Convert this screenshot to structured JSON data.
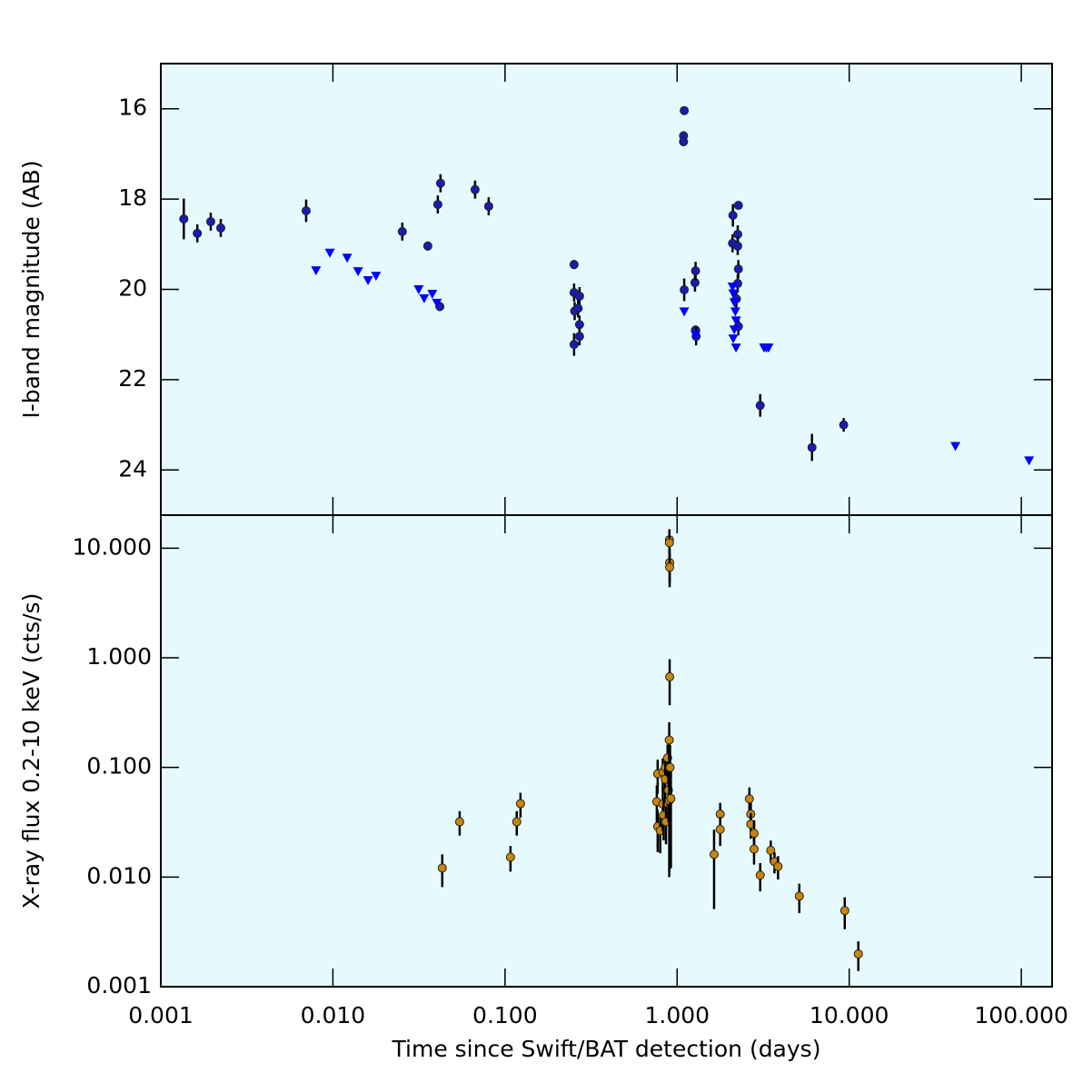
{
  "chart_data": [
    {
      "type": "scatter",
      "ylabel": "I-band magnitude (AB)",
      "xscale": "log",
      "xlim": [
        0.001,
        151
      ],
      "ylim": [
        25,
        15
      ],
      "yticks": [
        16,
        18,
        20,
        22,
        24
      ],
      "series": [
        {
          "color": "#1a1ab4",
          "marker": "circle",
          "x": [
            0.00136,
            0.00163,
            0.00195,
            0.00223,
            0.00699,
            0.0253,
            0.0356,
            0.0407,
            0.0422,
            0.0418,
            0.067,
            0.0804,
            0.252,
            0.252,
            0.254,
            0.252,
            0.271,
            0.271,
            0.266,
            0.271,
            1.1,
            1.09,
            1.09,
            1.1,
            1.27,
            1.28,
            1.28,
            1.29,
            2.11,
            2.1,
            2.27,
            2.25,
            2.25,
            2.27,
            2.25,
            2.21,
            2.27,
            3.04,
            6.08,
            9.29
          ],
          "values": [
            18.44,
            18.76,
            18.5,
            18.64,
            18.26,
            18.72,
            19.04,
            18.12,
            17.65,
            20.38,
            17.79,
            18.16,
            19.45,
            20.07,
            20.48,
            21.22,
            20.15,
            20.78,
            20.42,
            21.04,
            16.04,
            16.6,
            16.73,
            20.01,
            19.85,
            19.59,
            20.9,
            21.04,
            18.36,
            18.98,
            18.14,
            18.78,
            19.04,
            19.55,
            19.87,
            20.21,
            20.82,
            22.57,
            23.5,
            23.0
          ],
          "errors": [
            0.45,
            0.2,
            0.2,
            0.2,
            0.25,
            0.2,
            0.1,
            0.2,
            0.2,
            0.1,
            0.2,
            0.2,
            0.1,
            0.2,
            0.2,
            0.25,
            0.2,
            0.2,
            0.2,
            0.2,
            0.05,
            0.1,
            0.1,
            0.25,
            0.2,
            0.2,
            0.1,
            0.2,
            0.25,
            0.2,
            0.05,
            0.2,
            0.2,
            0.2,
            0.2,
            0.2,
            0.2,
            0.25,
            0.3,
            0.15
          ]
        },
        {
          "color": "#0000ff",
          "marker": "triangle-down",
          "x": [
            0.00798,
            0.0096,
            0.0121,
            0.014,
            0.016,
            0.0178,
            0.0315,
            0.0339,
            0.0378,
            0.0402,
            1.1,
            1.28,
            2.1,
            2.12,
            2.15,
            2.18,
            2.2,
            2.15,
            2.12,
            2.2,
            3.2,
            3.3,
            3.4,
            41.4,
            111
          ],
          "values": [
            19.59,
            19.2,
            19.31,
            19.61,
            19.81,
            19.71,
            20.01,
            20.21,
            20.11,
            20.31,
            20.5,
            21.02,
            19.95,
            20.1,
            20.3,
            20.5,
            20.7,
            20.9,
            21.1,
            21.3,
            21.3,
            21.3,
            21.3,
            23.48,
            23.8
          ]
        }
      ]
    },
    {
      "type": "scatter",
      "xlabel": "Time since Swift/BAT detection (days)",
      "ylabel": "X-ray flux 0.2-10 keV (cts/s)",
      "xscale": "log",
      "yscale": "log",
      "xlim": [
        0.001,
        151
      ],
      "ylim": [
        0.001,
        20
      ],
      "xticks": [
        0.001,
        {
          "value": 0.01,
          "label": "0.010"
        },
        {
          "value": 0.1,
          "label": "0.100"
        },
        {
          "value": 1,
          "label": "1.000"
        },
        {
          "value": 10,
          "label": "10.000"
        },
        {
          "value": 100,
          "label": "100.000"
        }
      ],
      "yticks": [
        0.001,
        {
          "value": 0.01,
          "label": "0.010"
        },
        {
          "value": 0.1,
          "label": "0.100"
        },
        {
          "value": 1,
          "label": "1.000"
        },
        {
          "value": 10,
          "label": "10.000"
        }
      ],
      "series": [
        {
          "color": "#c8860a",
          "marker": "circle",
          "x": [
            0.0432,
            0.0545,
            0.1076,
            0.117,
            0.123,
            0.902,
            0.902,
            0.905,
            0.905,
            0.905,
            0.771,
            0.762,
            0.771,
            0.798,
            0.826,
            0.826,
            0.835,
            0.853,
            0.853,
            0.862,
            0.88,
            0.89,
            0.9,
            0.9,
            0.91,
            0.92,
            1.64,
            1.78,
            1.78,
            2.63,
            2.68,
            2.68,
            2.8,
            2.8,
            3.04,
            3.5,
            3.68,
            3.86,
            5.13,
            9.42,
            11.3
          ],
          "values": [
            0.0121,
            0.0319,
            0.0152,
            0.0319,
            0.0467,
            11.9,
            11.2,
            7.38,
            6.7,
            0.67,
            0.0875,
            0.0487,
            0.0289,
            0.0265,
            0.0908,
            0.0464,
            0.0366,
            0.1,
            0.078,
            0.0319,
            0.122,
            0.062,
            0.178,
            0.05,
            0.1,
            0.052,
            0.0161,
            0.0375,
            0.0272,
            0.0517,
            0.0375,
            0.0304,
            0.025,
            0.018,
            0.0104,
            0.0175,
            0.0138,
            0.0125,
            0.0067,
            0.00494,
            0.00199
          ],
          "errors": [
            0.004,
            0.008,
            0.004,
            0.008,
            0.012,
            3,
            3,
            2.5,
            2.3,
            0.3,
            0.03,
            0.02,
            0.012,
            0.01,
            0.03,
            0.02,
            0.015,
            0.03,
            0.03,
            0.012,
            0.04,
            0.03,
            0.08,
            0.04,
            0.06,
            0.04,
            0.011,
            0.01,
            0.008,
            0.014,
            0.01,
            0.008,
            0.008,
            0.005,
            0.003,
            0.004,
            0.003,
            0.003,
            0.002,
            0.0016,
            0.0006
          ]
        }
      ]
    }
  ]
}
